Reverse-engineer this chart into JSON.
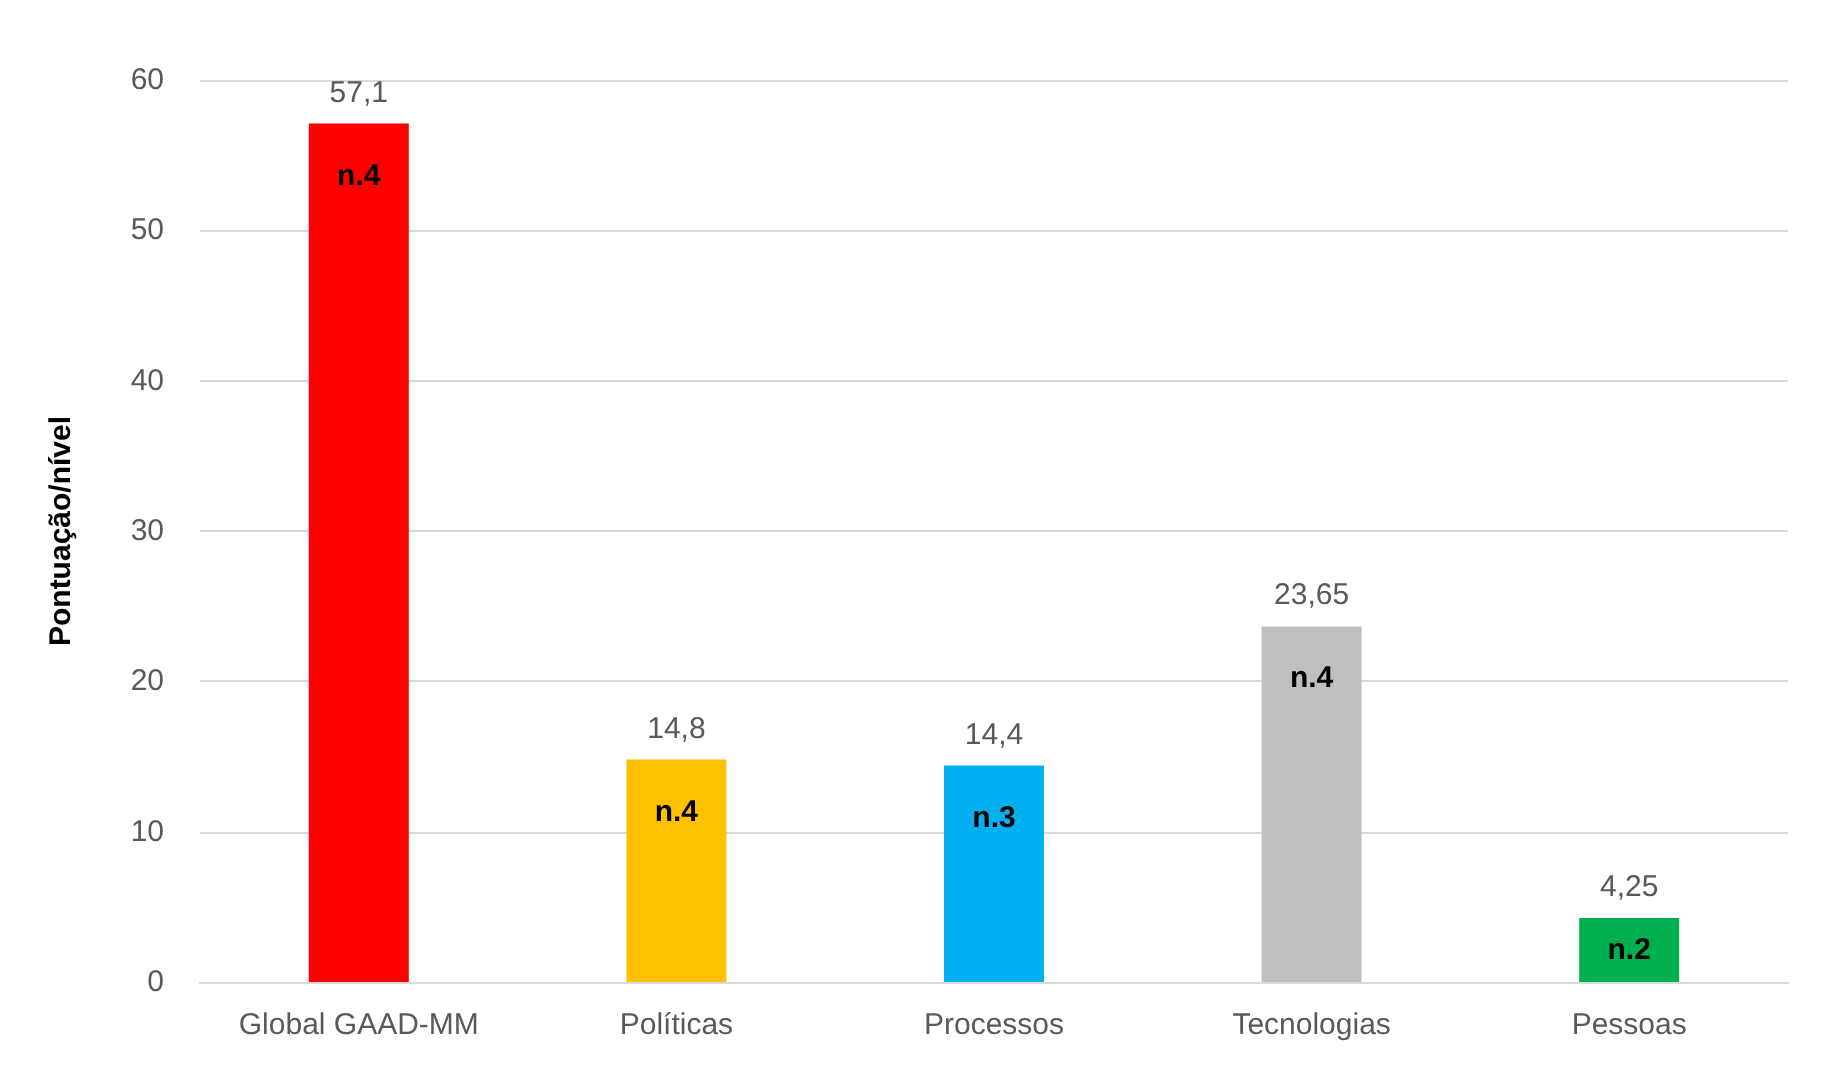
{
  "chart_data": {
    "type": "bar",
    "ylabel": "Pontuação/nível",
    "categories": [
      "Global GAAD-MM",
      "Políticas",
      "Processos",
      "Tecnologias",
      "Pessoas"
    ],
    "values": [
      57.1,
      14.8,
      14.4,
      23.65,
      4.25
    ],
    "colors": [
      "#ff0000",
      "#ffc000",
      "#00b0f0",
      "#bfbfbf",
      "#00b050"
    ],
    "value_labels": [
      "57,1",
      "14,8",
      "14,4",
      "23,65",
      "4,25"
    ],
    "annotations": [
      {
        "text": "n.4",
        "x": "Global GAAD-MM",
        "y": 57.1
      },
      {
        "text": "n.4",
        "x": "Políticas",
        "y": 14.8
      },
      {
        "text": "n.3",
        "x": "Processos",
        "y": 14.4
      },
      {
        "text": "n.4",
        "x": "Tecnologias",
        "y": 23.65
      },
      {
        "text": "n.2",
        "x": "Pessoas",
        "y": 4.25
      }
    ],
    "ylim": [
      0,
      60
    ],
    "yticks": [
      0,
      10,
      20,
      30,
      40,
      50,
      60
    ],
    "grid": "y"
  }
}
